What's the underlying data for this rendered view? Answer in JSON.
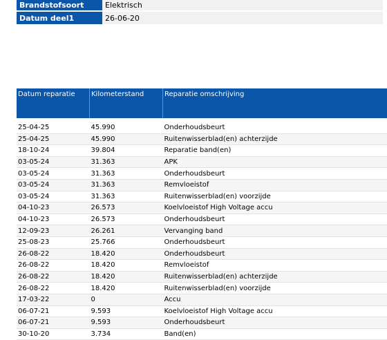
{
  "vehicle_info": [
    {
      "label": "Brandstofsoort",
      "value": "Elektrisch"
    },
    {
      "label": "Datum deel1",
      "value": "26-06-20"
    }
  ],
  "repairs": {
    "headers": [
      "Datum reparatie",
      "Kilometerstand",
      "Reparatie omschrijving"
    ],
    "rows": [
      [
        "25-04-25",
        "45.990",
        "Onderhoudsbeurt"
      ],
      [
        "25-04-25",
        "45.990",
        "Ruitenwisserblad(en) achterzijde"
      ],
      [
        "18-10-24",
        "39.804",
        "Reparatie band(en)"
      ],
      [
        "03-05-24",
        "31.363",
        "APK"
      ],
      [
        "03-05-24",
        "31.363",
        "Onderhoudsbeurt"
      ],
      [
        "03-05-24",
        "31.363",
        "Remvloeistof"
      ],
      [
        "03-05-24",
        "31.363",
        "Ruitenwisserblad(en) voorzijde"
      ],
      [
        "04-10-23",
        "26.573",
        "Koelvloeistof High Voltage accu"
      ],
      [
        "04-10-23",
        "26.573",
        "Onderhoudsbeurt"
      ],
      [
        "12-09-23",
        "26.261",
        "Vervanging band"
      ],
      [
        "25-08-23",
        "25.766",
        "Onderhoudsbeurt"
      ],
      [
        "26-08-22",
        "18.420",
        "Onderhoudsbeurt"
      ],
      [
        "26-08-22",
        "18.420",
        "Remvloeistof"
      ],
      [
        "26-08-22",
        "18.420",
        "Ruitenwisserblad(en) achterzijde"
      ],
      [
        "26-08-22",
        "18.420",
        "Ruitenwisserblad(en) voorzijde"
      ],
      [
        "17-03-22",
        "0",
        "Accu"
      ],
      [
        "06-07-21",
        "9.593",
        "Koelvloeistof High Voltage accu"
      ],
      [
        "06-07-21",
        "9.593",
        "Onderhoudsbeurt"
      ],
      [
        "30-10-20",
        "3.734",
        "Band(en)"
      ]
    ]
  },
  "colors": {
    "header_bg": "#0b56a8",
    "header_text": "#ffffff",
    "value_bg": "#f1f1f1"
  }
}
